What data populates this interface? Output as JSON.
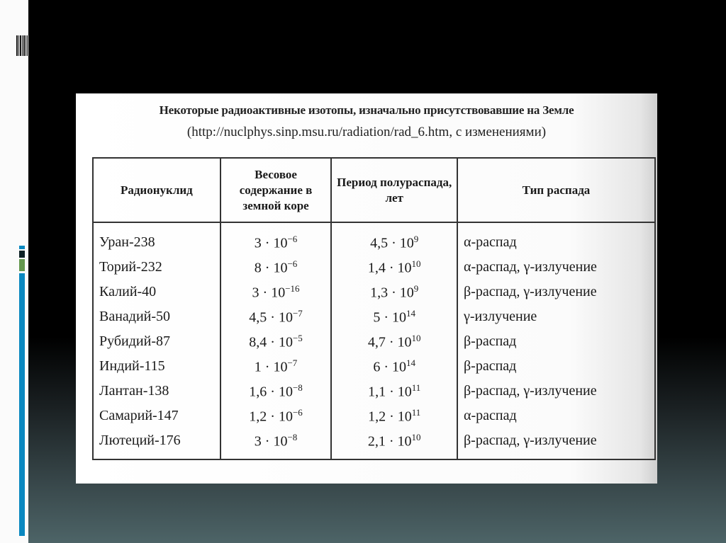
{
  "slide": {
    "accent_colors": {
      "blue": "#0a88c0",
      "dark": "#0e2226",
      "green": "#64984e"
    },
    "title": "Некоторые радиоактивные изотопы, изначально присутствовавшие на Земле",
    "subtitle": "(http://nuclphys.sinp.msu.ru/radiation/rad_6.htm, с изменениями)",
    "table": {
      "headers": [
        "Радионуклид",
        "Весовое содержание в земной коре",
        "Период полураспада, лет",
        "Тип распада"
      ],
      "rows": [
        {
          "nuclide": "Уран-238",
          "content_base": "3 · 10",
          "content_exp": "−6",
          "half_base": "4,5 · 10",
          "half_exp": "9",
          "decay": "α-распад"
        },
        {
          "nuclide": "Торий-232",
          "content_base": "8 · 10",
          "content_exp": "−6",
          "half_base": "1,4 · 10",
          "half_exp": "10",
          "decay": "α-распад, γ-излучение"
        },
        {
          "nuclide": "Калий-40",
          "content_base": "3 · 10",
          "content_exp": "−16",
          "half_base": "1,3 · 10",
          "half_exp": "9",
          "decay": "β-распад, γ-излучение"
        },
        {
          "nuclide": "Ванадий-50",
          "content_base": "4,5 · 10",
          "content_exp": "−7",
          "half_base": "5 · 10",
          "half_exp": "14",
          "decay": "γ-излучение"
        },
        {
          "nuclide": "Рубидий-87",
          "content_base": "8,4 · 10",
          "content_exp": "−5",
          "half_base": "4,7 · 10",
          "half_exp": "10",
          "decay": "β-распад"
        },
        {
          "nuclide": "Индий-115",
          "content_base": "1 · 10",
          "content_exp": "−7",
          "half_base": "6 · 10",
          "half_exp": "14",
          "decay": "β-распад"
        },
        {
          "nuclide": "Лантан-138",
          "content_base": "1,6 · 10",
          "content_exp": "−8",
          "half_base": "1,1 · 10",
          "half_exp": "11",
          "decay": "β-распад, γ-излучение"
        },
        {
          "nuclide": "Самарий-147",
          "content_base": "1,2 · 10",
          "content_exp": "−6",
          "half_base": "1,2 · 10",
          "half_exp": "11",
          "decay": "α-распад"
        },
        {
          "nuclide": "Лютеций-176",
          "content_base": "3 · 10",
          "content_exp": "−8",
          "half_base": "2,1 · 10",
          "half_exp": "10",
          "decay": "β-распад, γ-излучение"
        }
      ]
    }
  }
}
